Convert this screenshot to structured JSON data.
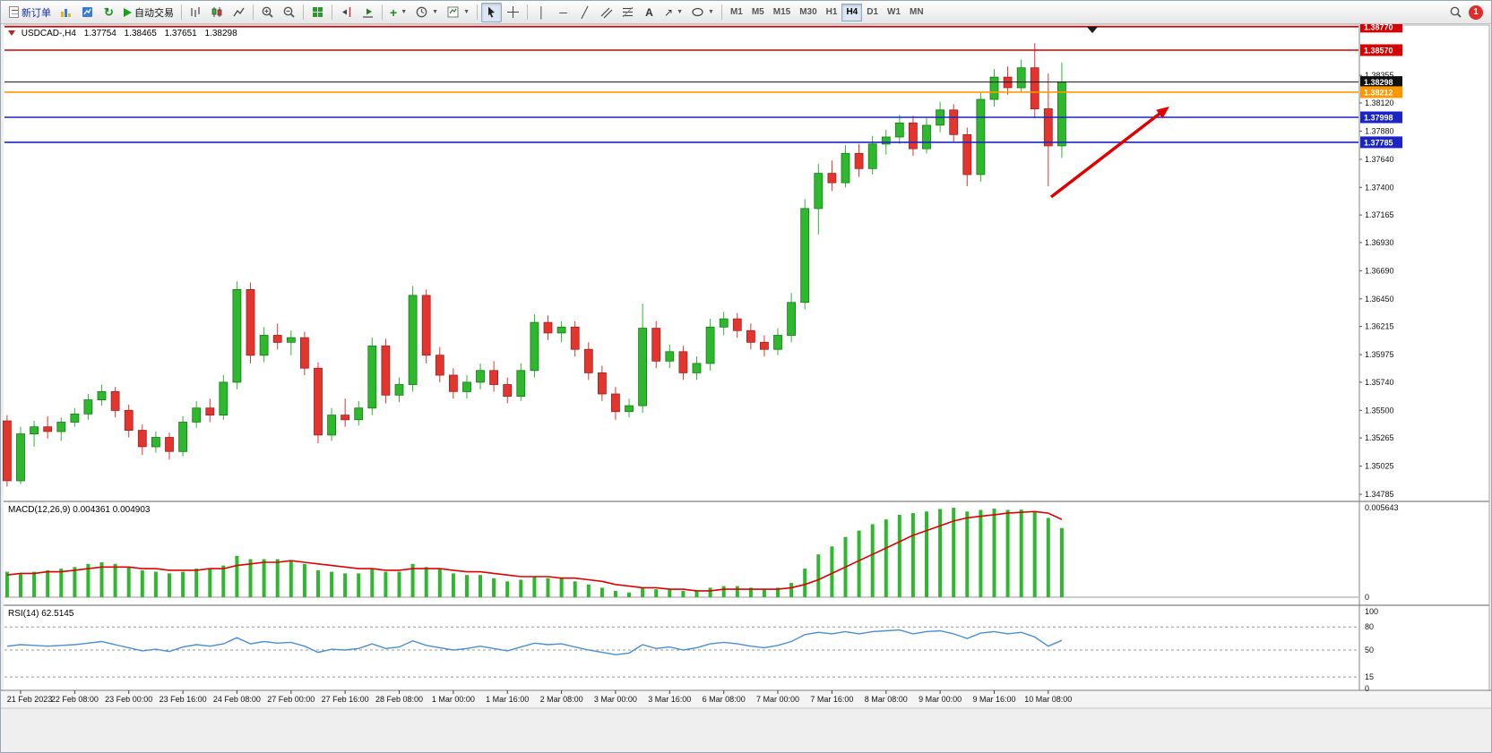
{
  "toolbar": {
    "new_order_label": "新订单",
    "autotrading_label": "自动交易",
    "timeframes": [
      "M1",
      "M5",
      "M15",
      "M30",
      "H1",
      "H4",
      "D1",
      "W1",
      "MN"
    ],
    "active_timeframe": "H4",
    "notification_count": "1"
  },
  "chart": {
    "symbol_label": "USDCAD-,H4",
    "ohlc": {
      "open": "1.37754",
      "high": "1.38465",
      "low": "1.37651",
      "close": "1.38298"
    },
    "price_axis_labels": [
      "1.38355",
      "1.38120",
      "1.37880",
      "1.37640",
      "1.37400",
      "1.37165",
      "1.36930",
      "1.36690",
      "1.36450",
      "1.36215",
      "1.35975",
      "1.35740",
      "1.35500",
      "1.35265",
      "1.35025",
      "1.34785"
    ],
    "hlines": [
      {
        "price": 1.3877,
        "label": "1.38770",
        "color": "#d60000"
      },
      {
        "price": 1.3857,
        "label": "1.38570",
        "color": "#d60000"
      },
      {
        "price": 1.38298,
        "label": "1.38298",
        "color": "#101010"
      },
      {
        "price": 1.38212,
        "label": "1.38212",
        "color": "#ff9800"
      },
      {
        "price": 1.37998,
        "label": "1.37998",
        "color": "#1b24c4"
      },
      {
        "price": 1.37785,
        "label": "1.37785",
        "color": "#1b24c4"
      }
    ],
    "colors": {
      "background": "#ffffff",
      "up": "#2db82d",
      "down": "#e3342e",
      "macd_histogram": "#2db82d",
      "macd_signal": "#e00000",
      "rsi_line": "#4a8fd3",
      "arrow": "#e00000"
    }
  },
  "macd": {
    "label": "MACD(12,26,9) 0.004361 0.004903",
    "axis_max": "0.005643",
    "axis_zero": "0"
  },
  "rsi": {
    "label": "RSI(14) 62.5145",
    "axis_labels": [
      "100",
      "80",
      "50",
      "15",
      "0"
    ]
  },
  "chart_data": {
    "type": "candlestick",
    "symbol": "USDCAD-",
    "timeframe": "H4",
    "title": "USDCAD-,H4 1.37754 1.38465 1.37651 1.38298",
    "ylim": [
      1.34732,
      1.38776
    ],
    "y_ticks": [
      1.38355,
      1.3812,
      1.3788,
      1.3764,
      1.374,
      1.37165,
      1.3693,
      1.3669,
      1.3645,
      1.36215,
      1.35975,
      1.3574,
      1.355,
      1.35265,
      1.35025,
      1.34785
    ],
    "x_labels": [
      "21 Feb 2023",
      "22 Feb 08:00",
      "23 Feb 00:00",
      "23 Feb 16:00",
      "24 Feb 08:00",
      "27 Feb 00:00",
      "27 Feb 16:00",
      "28 Feb 08:00",
      "1 Mar 00:00",
      "1 Mar 16:00",
      "2 Mar 08:00",
      "3 Mar 00:00",
      "3 Mar 16:00",
      "6 Mar 08:00",
      "7 Mar 00:00",
      "7 Mar 16:00",
      "8 Mar 08:00",
      "9 Mar 00:00",
      "9 Mar 16:00",
      "10 Mar 08:00"
    ],
    "hlines": [
      1.3877,
      1.3857,
      1.38298,
      1.38212,
      1.37998,
      1.37785
    ],
    "candles": [
      [
        1.3541,
        1.3546,
        1.3485,
        1.349
      ],
      [
        1.349,
        1.3536,
        1.3487,
        1.353
      ],
      [
        1.353,
        1.3541,
        1.3519,
        1.3536
      ],
      [
        1.3536,
        1.3545,
        1.3526,
        1.3532
      ],
      [
        1.3532,
        1.3544,
        1.3524,
        1.354
      ],
      [
        1.354,
        1.3552,
        1.3536,
        1.3547
      ],
      [
        1.3547,
        1.3564,
        1.3542,
        1.3559
      ],
      [
        1.3559,
        1.3572,
        1.3554,
        1.3566
      ],
      [
        1.3566,
        1.357,
        1.3544,
        1.355
      ],
      [
        1.355,
        1.3555,
        1.3527,
        1.3533
      ],
      [
        1.3533,
        1.3538,
        1.3512,
        1.3519
      ],
      [
        1.3519,
        1.3532,
        1.3514,
        1.3527
      ],
      [
        1.3527,
        1.3531,
        1.3508,
        1.3515
      ],
      [
        1.3515,
        1.3545,
        1.3511,
        1.354
      ],
      [
        1.354,
        1.3558,
        1.3535,
        1.3552
      ],
      [
        1.3552,
        1.356,
        1.354,
        1.3546
      ],
      [
        1.3546,
        1.358,
        1.3542,
        1.3574
      ],
      [
        1.3574,
        1.366,
        1.3568,
        1.3653
      ],
      [
        1.3653,
        1.3659,
        1.359,
        1.3597
      ],
      [
        1.3597,
        1.3621,
        1.3591,
        1.3614
      ],
      [
        1.3614,
        1.3624,
        1.3602,
        1.3608
      ],
      [
        1.3608,
        1.3618,
        1.3597,
        1.3612
      ],
      [
        1.3612,
        1.3617,
        1.358,
        1.3586
      ],
      [
        1.3586,
        1.3591,
        1.3522,
        1.3529
      ],
      [
        1.3529,
        1.3552,
        1.3524,
        1.3546
      ],
      [
        1.3546,
        1.356,
        1.3536,
        1.3542
      ],
      [
        1.3542,
        1.3558,
        1.3537,
        1.3552
      ],
      [
        1.3552,
        1.3612,
        1.3546,
        1.3605
      ],
      [
        1.3605,
        1.3611,
        1.3556,
        1.3563
      ],
      [
        1.3563,
        1.3578,
        1.3557,
        1.3572
      ],
      [
        1.3572,
        1.3656,
        1.3566,
        1.3648
      ],
      [
        1.3648,
        1.3653,
        1.359,
        1.3597
      ],
      [
        1.3597,
        1.3604,
        1.3574,
        1.358
      ],
      [
        1.358,
        1.3586,
        1.356,
        1.3566
      ],
      [
        1.3566,
        1.358,
        1.356,
        1.3574
      ],
      [
        1.3574,
        1.359,
        1.3568,
        1.3584
      ],
      [
        1.3584,
        1.3592,
        1.3566,
        1.3572
      ],
      [
        1.3572,
        1.3578,
        1.3556,
        1.3562
      ],
      [
        1.3562,
        1.359,
        1.3558,
        1.3584
      ],
      [
        1.3584,
        1.3632,
        1.3578,
        1.3625
      ],
      [
        1.3625,
        1.3631,
        1.361,
        1.3616
      ],
      [
        1.3616,
        1.3626,
        1.3608,
        1.3621
      ],
      [
        1.3621,
        1.3626,
        1.3596,
        1.3602
      ],
      [
        1.3602,
        1.3608,
        1.3576,
        1.3582
      ],
      [
        1.3582,
        1.3588,
        1.3558,
        1.3564
      ],
      [
        1.3564,
        1.357,
        1.3542,
        1.3549
      ],
      [
        1.3549,
        1.356,
        1.3544,
        1.3554
      ],
      [
        1.3554,
        1.3641,
        1.3548,
        1.362
      ],
      [
        1.362,
        1.3626,
        1.3586,
        1.3592
      ],
      [
        1.3592,
        1.3606,
        1.3586,
        1.36
      ],
      [
        1.36,
        1.3605,
        1.3576,
        1.3582
      ],
      [
        1.3582,
        1.3596,
        1.3576,
        1.359
      ],
      [
        1.359,
        1.3628,
        1.3584,
        1.3621
      ],
      [
        1.3621,
        1.3634,
        1.3614,
        1.3628
      ],
      [
        1.3628,
        1.3633,
        1.3612,
        1.3618
      ],
      [
        1.3618,
        1.3624,
        1.3602,
        1.3608
      ],
      [
        1.3608,
        1.3614,
        1.3596,
        1.3602
      ],
      [
        1.3602,
        1.362,
        1.3597,
        1.3614
      ],
      [
        1.3614,
        1.365,
        1.3608,
        1.3642
      ],
      [
        1.3642,
        1.373,
        1.3636,
        1.3722
      ],
      [
        1.3722,
        1.376,
        1.37,
        1.3752
      ],
      [
        1.3752,
        1.3763,
        1.3737,
        1.3744
      ],
      [
        1.3744,
        1.3776,
        1.374,
        1.3769
      ],
      [
        1.3769,
        1.3777,
        1.3749,
        1.3756
      ],
      [
        1.3756,
        1.3784,
        1.3751,
        1.3777
      ],
      [
        1.3777,
        1.3789,
        1.3768,
        1.3783
      ],
      [
        1.3783,
        1.3802,
        1.3777,
        1.3795
      ],
      [
        1.3795,
        1.3801,
        1.3767,
        1.3773
      ],
      [
        1.3773,
        1.3799,
        1.3769,
        1.3793
      ],
      [
        1.3793,
        1.3813,
        1.3787,
        1.3806
      ],
      [
        1.3806,
        1.3811,
        1.3779,
        1.3785
      ],
      [
        1.3785,
        1.3791,
        1.3741,
        1.3751
      ],
      [
        1.3751,
        1.3821,
        1.3745,
        1.3815
      ],
      [
        1.3815,
        1.3841,
        1.3809,
        1.3834
      ],
      [
        1.3834,
        1.3843,
        1.3819,
        1.3825
      ],
      [
        1.3825,
        1.3849,
        1.3821,
        1.3842
      ],
      [
        1.3842,
        1.3863,
        1.3799,
        1.3807
      ],
      [
        1.3807,
        1.3837,
        1.3741,
        1.37754
      ],
      [
        1.37754,
        1.38465,
        1.37651,
        1.38298
      ]
    ],
    "indicators": {
      "macd": {
        "params": [
          12,
          26,
          9
        ],
        "last_main": 0.004361,
        "last_signal": 0.004903,
        "axis_max": 0.005643,
        "histogram": [
          0.0016,
          0.0015,
          0.0016,
          0.0017,
          0.0018,
          0.0019,
          0.0021,
          0.0022,
          0.0021,
          0.0019,
          0.0017,
          0.0016,
          0.0015,
          0.0016,
          0.0018,
          0.0018,
          0.002,
          0.0026,
          0.0024,
          0.0024,
          0.0024,
          0.0023,
          0.0021,
          0.0017,
          0.0016,
          0.0015,
          0.0015,
          0.0018,
          0.0016,
          0.0016,
          0.0021,
          0.0019,
          0.0018,
          0.0015,
          0.0014,
          0.0014,
          0.0012,
          0.001,
          0.0011,
          0.0013,
          0.0012,
          0.0012,
          0.001,
          0.0008,
          0.0006,
          0.0004,
          0.0003,
          0.0006,
          0.0005,
          0.0005,
          0.0004,
          0.0004,
          0.0006,
          0.0007,
          0.0007,
          0.0006,
          0.0005,
          0.0006,
          0.0009,
          0.0018,
          0.0027,
          0.0032,
          0.0038,
          0.0042,
          0.0046,
          0.0049,
          0.0052,
          0.0053,
          0.0054,
          0.00556,
          0.00564,
          0.0054,
          0.0055,
          0.00558,
          0.0055,
          0.00552,
          0.0054,
          0.005,
          0.004361
        ],
        "signal": [
          0.0014,
          0.0015,
          0.0015,
          0.0016,
          0.0016,
          0.0017,
          0.0018,
          0.0019,
          0.0019,
          0.0019,
          0.0018,
          0.0018,
          0.0017,
          0.0017,
          0.0017,
          0.0018,
          0.0018,
          0.002,
          0.0021,
          0.0022,
          0.0022,
          0.0023,
          0.0022,
          0.0021,
          0.002,
          0.0019,
          0.0018,
          0.0018,
          0.0017,
          0.0017,
          0.0018,
          0.0018,
          0.0018,
          0.0017,
          0.0016,
          0.0016,
          0.0015,
          0.0014,
          0.0013,
          0.0013,
          0.0013,
          0.0012,
          0.0012,
          0.0011,
          0.001,
          0.0008,
          0.0007,
          0.0006,
          0.0006,
          0.0005,
          0.0005,
          0.0004,
          0.0004,
          0.0005,
          0.0005,
          0.0005,
          0.0005,
          0.0005,
          0.0006,
          0.0008,
          0.0011,
          0.0015,
          0.0019,
          0.0023,
          0.0027,
          0.0031,
          0.0035,
          0.0039,
          0.0042,
          0.0045,
          0.0048,
          0.005,
          0.0051,
          0.0052,
          0.0053,
          0.00535,
          0.0054,
          0.0053,
          0.004903
        ]
      },
      "rsi": {
        "period": 14,
        "last": 62.5145,
        "levels": [
          80,
          50,
          15
        ],
        "range": [
          0,
          100
        ],
        "values": [
          55,
          57,
          56,
          55,
          56,
          57,
          59,
          61,
          57,
          53,
          49,
          51,
          48,
          54,
          57,
          55,
          58,
          66,
          58,
          61,
          59,
          60,
          55,
          47,
          51,
          50,
          52,
          58,
          52,
          54,
          62,
          56,
          53,
          50,
          52,
          55,
          52,
          49,
          54,
          59,
          57,
          58,
          54,
          50,
          47,
          44,
          46,
          57,
          52,
          54,
          50,
          53,
          58,
          60,
          58,
          55,
          53,
          56,
          61,
          70,
          73,
          71,
          74,
          71,
          74,
          75,
          76,
          71,
          74,
          75,
          71,
          65,
          72,
          74,
          71,
          73,
          67,
          55,
          62.51
        ]
      }
    },
    "annotations": [
      {
        "type": "arrow",
        "direction": "up-right",
        "color": "#e00000"
      }
    ]
  }
}
